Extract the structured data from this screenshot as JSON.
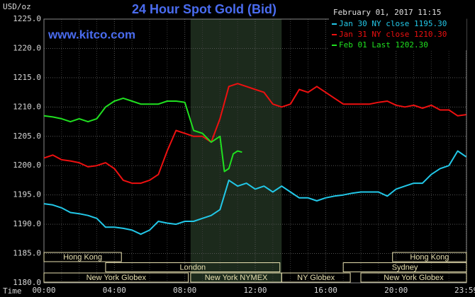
{
  "chart_data": {
    "type": "line",
    "title": "24 Hour Spot Gold (Bid)",
    "subtitle": "www.kitco.com",
    "y_label": "USD/oz",
    "x_label": "Time",
    "timestamp": "February 01, 2017 11:15",
    "xlim": [
      0,
      24
    ],
    "ylim": [
      1180,
      1225
    ],
    "xticks": [
      {
        "value": 0,
        "label": "00:00"
      },
      {
        "value": 4,
        "label": "04:00"
      },
      {
        "value": 8,
        "label": "08:00"
      },
      {
        "value": 12,
        "label": "12:00"
      },
      {
        "value": 16,
        "label": "16:00"
      },
      {
        "value": 20,
        "label": "20:00"
      },
      {
        "value": 23.983,
        "label": "23:59"
      }
    ],
    "xminor": [
      1,
      2,
      3,
      5,
      6,
      7,
      9,
      10,
      11,
      13,
      14,
      15,
      17,
      18,
      19,
      21,
      22,
      23
    ],
    "yticks": [
      {
        "value": 1180,
        "label": "1180.0"
      },
      {
        "value": 1185,
        "label": "1185.0"
      },
      {
        "value": 1190,
        "label": "1190.0"
      },
      {
        "value": 1195,
        "label": "1195.0"
      },
      {
        "value": 1200,
        "label": "1200.0"
      },
      {
        "value": 1205,
        "label": "1205.0"
      },
      {
        "value": 1210,
        "label": "1210.0"
      },
      {
        "value": 1215,
        "label": "1215.0"
      },
      {
        "value": 1220,
        "label": "1220.0"
      },
      {
        "value": 1225,
        "label": "1225.0"
      }
    ],
    "grid": true,
    "highlight_x": [
      8.33,
      13.5
    ],
    "series": [
      {
        "name": "Jan 30 NY close 1195.30",
        "color": "#22c8e8",
        "x": [
          0,
          0.5,
          1,
          1.5,
          2,
          2.5,
          3,
          3.5,
          4,
          4.5,
          5,
          5.5,
          6,
          6.5,
          7,
          7.5,
          8,
          8.5,
          9,
          9.5,
          10,
          10.5,
          11,
          11.5,
          12,
          12.5,
          13,
          13.5,
          14,
          14.5,
          15,
          15.5,
          16,
          16.5,
          17,
          17.5,
          18,
          18.5,
          19,
          19.5,
          20,
          20.5,
          21,
          21.5,
          22,
          22.5,
          23,
          23.5,
          23.983
        ],
        "values": [
          1193.5,
          1193.3,
          1192.8,
          1192.0,
          1191.8,
          1191.5,
          1191.0,
          1189.5,
          1189.5,
          1189.3,
          1189.0,
          1188.3,
          1189.0,
          1190.5,
          1190.2,
          1190.0,
          1190.5,
          1190.5,
          1191.0,
          1191.5,
          1192.5,
          1197.5,
          1196.5,
          1197.0,
          1196.0,
          1196.5,
          1195.5,
          1196.5,
          1195.5,
          1194.5,
          1194.5,
          1194.0,
          1194.5,
          1194.8,
          1195.0,
          1195.3,
          1195.5,
          1195.5,
          1195.5,
          1194.8,
          1196.0,
          1196.5,
          1197.0,
          1197.0,
          1198.5,
          1199.5,
          1200.0,
          1202.5,
          1201.5
        ]
      },
      {
        "name": "Jan 31 NY close 1210.30",
        "color": "#ee1010",
        "x": [
          0,
          0.5,
          1,
          1.5,
          2,
          2.5,
          3,
          3.5,
          4,
          4.5,
          5,
          5.5,
          6,
          6.5,
          7,
          7.5,
          8,
          8.5,
          9,
          9.5,
          10,
          10.5,
          11,
          11.5,
          12,
          12.5,
          13,
          13.5,
          14,
          14.5,
          15,
          15.5,
          16,
          16.5,
          17,
          17.5,
          18,
          18.5,
          19,
          19.5,
          20,
          20.5,
          21,
          21.5,
          22,
          22.5,
          23,
          23.5,
          23.983
        ],
        "values": [
          1201.3,
          1201.8,
          1201.0,
          1200.8,
          1200.5,
          1199.8,
          1200.0,
          1200.5,
          1199.5,
          1197.5,
          1197.0,
          1197.0,
          1197.5,
          1198.5,
          1202.5,
          1206.0,
          1205.5,
          1205.0,
          1205.0,
          1204.0,
          1208.0,
          1213.5,
          1214.0,
          1213.5,
          1213.0,
          1212.5,
          1210.5,
          1210.0,
          1210.5,
          1213.0,
          1212.5,
          1213.5,
          1212.5,
          1211.5,
          1210.5,
          1210.5,
          1210.5,
          1210.5,
          1210.8,
          1211.0,
          1210.3,
          1210.0,
          1210.3,
          1209.8,
          1210.3,
          1209.5,
          1209.5,
          1208.5,
          1208.7
        ]
      },
      {
        "name": "Feb 01 Last 1202.30",
        "color": "#20e020",
        "x": [
          0,
          0.5,
          1,
          1.5,
          2,
          2.5,
          3,
          3.5,
          4,
          4.5,
          5,
          5.5,
          6,
          6.5,
          7,
          7.5,
          8,
          8.5,
          9,
          9.5,
          10,
          10.25,
          10.5,
          10.75,
          11,
          11.25
        ],
        "values": [
          1208.5,
          1208.3,
          1208.0,
          1207.5,
          1208.0,
          1207.5,
          1208.0,
          1210.0,
          1211.0,
          1211.5,
          1211.0,
          1210.5,
          1210.5,
          1210.5,
          1211.0,
          1211.0,
          1210.8,
          1206.0,
          1205.5,
          1204.0,
          1205.0,
          1199.0,
          1199.5,
          1202.0,
          1202.5,
          1202.3
        ]
      }
    ],
    "sessions": [
      {
        "label": "Hong Kong",
        "start": 0,
        "end": 4.4,
        "row": 0
      },
      {
        "label": "Hong Kong",
        "start": 19.8,
        "end": 24,
        "row": 0
      },
      {
        "label": "London",
        "start": 3.5,
        "end": 13.4,
        "row": 1
      },
      {
        "label": "Sydney",
        "start": 17,
        "end": 24,
        "row": 1
      },
      {
        "label": "New York Globex",
        "start": 0,
        "end": 8.2,
        "row": 2
      },
      {
        "label": "New York NYMEX",
        "start": 8.33,
        "end": 13.5,
        "row": 2
      },
      {
        "label": "NY Globex",
        "start": 13.5,
        "end": 17.4,
        "row": 2
      },
      {
        "label": "New York Globex",
        "start": 18,
        "end": 24,
        "row": 2
      }
    ]
  }
}
